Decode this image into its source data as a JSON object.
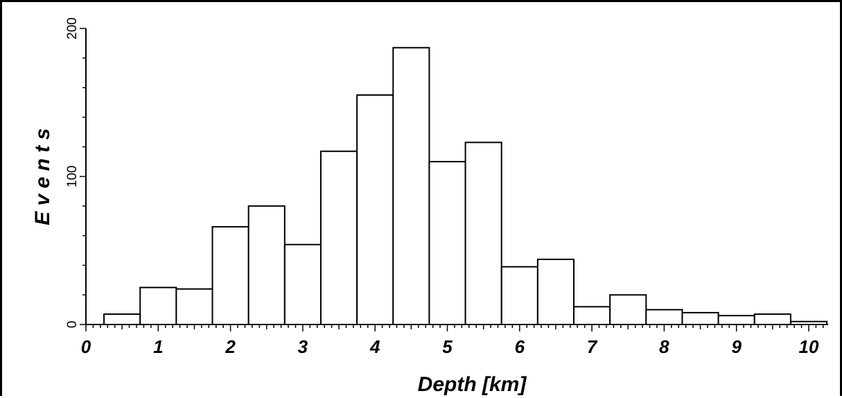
{
  "chart_data": {
    "type": "bar",
    "xlabel": "Depth [km]",
    "ylabel": "E v e n t s",
    "x_ticks": [
      "0",
      "1",
      "2",
      "3",
      "4",
      "5",
      "6",
      "7",
      "8",
      "9",
      "10"
    ],
    "y_ticks": [
      "0",
      "100",
      "200"
    ],
    "xlim": [
      0,
      10.25
    ],
    "ylim": [
      0,
      200
    ],
    "bin_width": 0.5,
    "bin_starts": [
      0.25,
      0.75,
      1.25,
      1.75,
      2.25,
      2.75,
      3.25,
      3.75,
      4.25,
      4.75,
      5.25,
      5.75,
      6.25,
      6.75,
      7.25,
      7.75,
      8.25,
      8.75,
      9.25,
      9.75
    ],
    "values": [
      7,
      25,
      24,
      66,
      80,
      54,
      117,
      155,
      187,
      110,
      123,
      39,
      44,
      12,
      20,
      10,
      8,
      6,
      7,
      2
    ],
    "grid": false
  }
}
